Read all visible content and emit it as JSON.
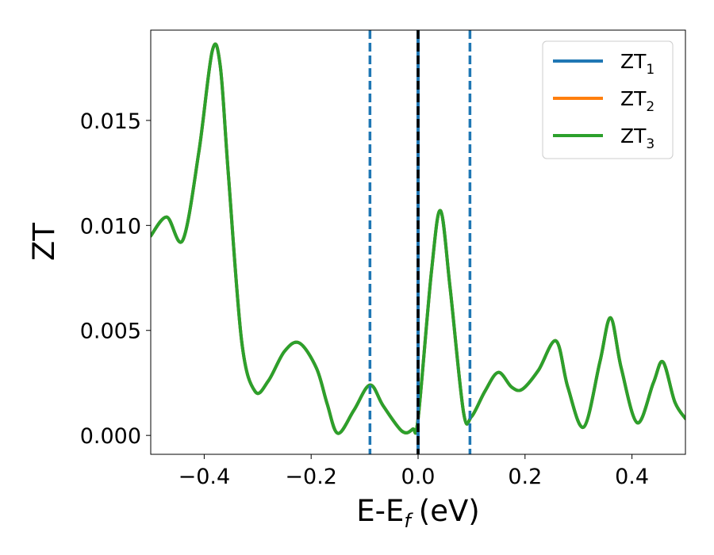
{
  "chart_data": {
    "type": "line",
    "title": "",
    "xlabel": "E-E",
    "xlabel_sub": "f",
    "xlabel_unit": "(eV)",
    "ylabel": "ZT",
    "xlim": [
      -0.5,
      0.5
    ],
    "ylim": [
      -0.0009,
      0.0193
    ],
    "xticks": [
      -0.4,
      -0.2,
      0.0,
      0.2,
      0.4
    ],
    "xtick_labels": [
      "−0.4",
      "−0.2",
      "0.0",
      "0.2",
      "0.4"
    ],
    "yticks": [
      0.0,
      0.005,
      0.01,
      0.015
    ],
    "ytick_labels": [
      "0.000",
      "0.005",
      "0.010",
      "0.015"
    ],
    "grid": false,
    "legend_position": "top-right",
    "series": [
      {
        "name": "ZT",
        "sub": "1",
        "color": "#1f77b4"
      },
      {
        "name": "ZT",
        "sub": "2",
        "color": "#ff7f0e"
      },
      {
        "name": "ZT",
        "sub": "3",
        "color": "#2ca02c"
      }
    ],
    "x": [
      -0.5,
      -0.47,
      -0.44,
      -0.41,
      -0.385,
      -0.37,
      -0.355,
      -0.33,
      -0.305,
      -0.28,
      -0.25,
      -0.222,
      -0.19,
      -0.17,
      -0.15,
      -0.12,
      -0.09,
      -0.065,
      -0.03,
      -0.01,
      0.0,
      0.025,
      0.042,
      0.06,
      0.085,
      0.1,
      0.125,
      0.15,
      0.175,
      0.195,
      0.225,
      0.258,
      0.28,
      0.31,
      0.34,
      0.36,
      0.38,
      0.41,
      0.44,
      0.458,
      0.48,
      0.5
    ],
    "y": [
      0.0095,
      0.0104,
      0.0093,
      0.0135,
      0.0183,
      0.0176,
      0.0125,
      0.0045,
      0.0021,
      0.0026,
      0.004,
      0.0044,
      0.0032,
      0.0015,
      0.0001,
      0.0012,
      0.0024,
      0.0014,
      0.0002,
      0.0003,
      0.0008,
      0.0078,
      0.0107,
      0.007,
      0.0011,
      0.0009,
      0.0021,
      0.003,
      0.0023,
      0.0022,
      0.0031,
      0.0045,
      0.0023,
      0.0004,
      0.0035,
      0.0056,
      0.0032,
      0.0006,
      0.0025,
      0.0035,
      0.0016,
      0.0008
    ],
    "vlines": [
      {
        "x": -0.09,
        "style": "dashed",
        "color": "#1f77b4"
      },
      {
        "x": 0.0,
        "style": "solid",
        "color": "#1f77b4"
      },
      {
        "x": 0.0,
        "style": "dashed",
        "color": "#000000"
      },
      {
        "x": 0.097,
        "style": "dashed",
        "color": "#1f77b4"
      }
    ]
  }
}
